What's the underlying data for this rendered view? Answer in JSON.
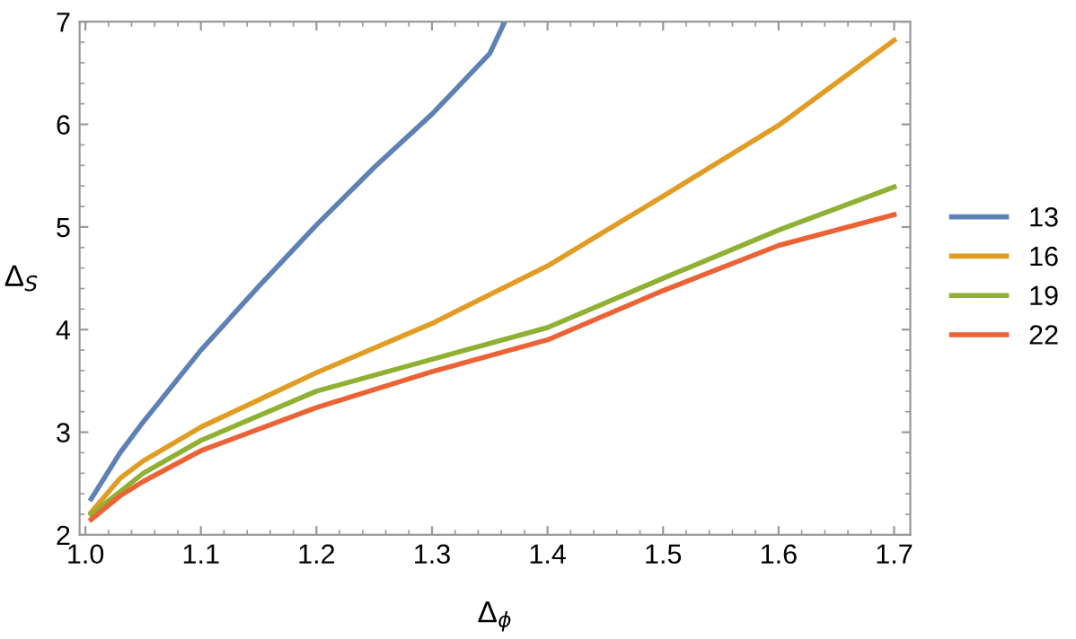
{
  "chart_data": {
    "type": "line",
    "xlabel": "Δ$_{ϕ}$",
    "ylabel": "Δ$_{S}$",
    "xlim": [
      0.995,
      1.714
    ],
    "ylim": [
      2,
      7
    ],
    "xticks": [
      {
        "value": 1.0,
        "label": "1.0"
      },
      1.1,
      1.2,
      1.3,
      1.4,
      1.5,
      1.6,
      1.7
    ],
    "yticks": [
      2,
      3,
      4,
      5,
      6,
      7
    ],
    "legend": "right",
    "grid": false,
    "series": [
      {
        "name": "13",
        "color": "#5e81b5",
        "x": [
          1.005,
          1.03,
          1.05,
          1.1,
          1.15,
          1.2,
          1.25,
          1.3,
          1.35,
          1.363
        ],
        "values": [
          2.35,
          2.8,
          3.1,
          3.8,
          4.42,
          5.02,
          5.58,
          6.1,
          6.69,
          7.0
        ]
      },
      {
        "name": "16",
        "color": "#e19c24",
        "x": [
          1.005,
          1.03,
          1.05,
          1.1,
          1.2,
          1.3,
          1.4,
          1.5,
          1.6,
          1.7
        ],
        "values": [
          2.22,
          2.55,
          2.72,
          3.05,
          3.58,
          4.06,
          4.62,
          5.3,
          5.99,
          6.82
        ]
      },
      {
        "name": "19",
        "color": "#8fb032",
        "x": [
          1.005,
          1.03,
          1.05,
          1.1,
          1.2,
          1.3,
          1.4,
          1.5,
          1.6,
          1.7
        ],
        "values": [
          2.2,
          2.42,
          2.6,
          2.92,
          3.4,
          3.71,
          4.02,
          4.5,
          4.97,
          5.39
        ]
      },
      {
        "name": "22",
        "color": "#eb6235",
        "x": [
          1.005,
          1.03,
          1.05,
          1.1,
          1.2,
          1.3,
          1.4,
          1.5,
          1.6,
          1.7
        ],
        "values": [
          2.15,
          2.38,
          2.52,
          2.82,
          3.24,
          3.59,
          3.9,
          4.38,
          4.82,
          5.12
        ]
      }
    ]
  }
}
